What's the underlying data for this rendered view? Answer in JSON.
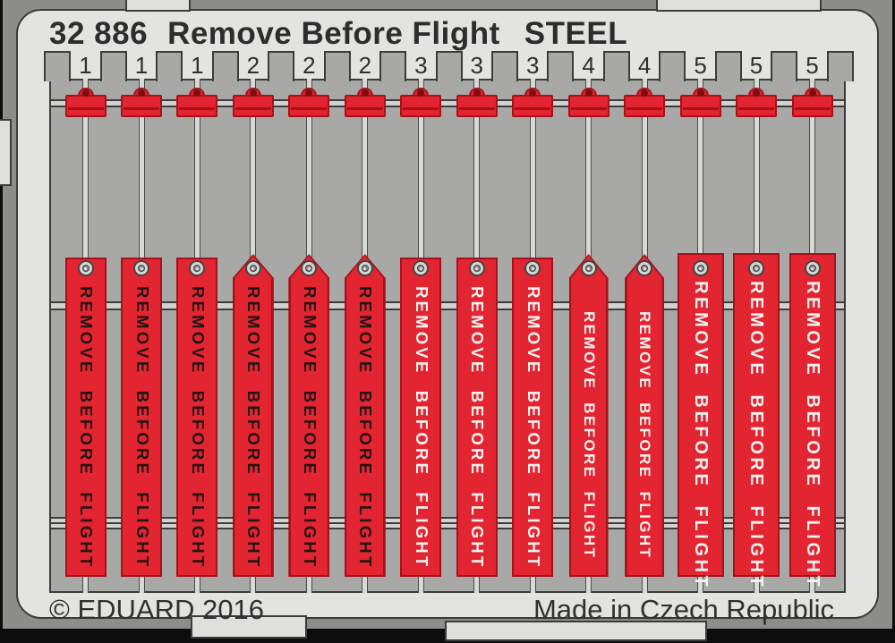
{
  "header": {
    "catalog_number": "32 886",
    "product_name": "Remove Before Flight",
    "material": "STEEL"
  },
  "footer": {
    "copyright": "© EDUARD 2016",
    "origin": "Made in Czech Republic"
  },
  "banner_text": "REMOVE BEFORE FLIGHT",
  "columns": [
    {
      "number": "1",
      "banner_text": "REMOVE BEFORE FLIGHT",
      "top": "flat",
      "text_color": "dark",
      "size": "std"
    },
    {
      "number": "1",
      "banner_text": "REMOVE BEFORE FLIGHT",
      "top": "flat",
      "text_color": "dark",
      "size": "std"
    },
    {
      "number": "1",
      "banner_text": "REMOVE BEFORE FLIGHT",
      "top": "flat",
      "text_color": "dark",
      "size": "std"
    },
    {
      "number": "2",
      "banner_text": "REMOVE BEFORE FLIGHT",
      "top": "point",
      "text_color": "dark",
      "size": "std"
    },
    {
      "number": "2",
      "banner_text": "REMOVE BEFORE FLIGHT",
      "top": "point",
      "text_color": "dark",
      "size": "std"
    },
    {
      "number": "2",
      "banner_text": "REMOVE BEFORE FLIGHT",
      "top": "point",
      "text_color": "dark",
      "size": "std"
    },
    {
      "number": "3",
      "banner_text": "REMOVE BEFORE FLIGHT",
      "top": "flat",
      "text_color": "light",
      "size": "std"
    },
    {
      "number": "3",
      "banner_text": "REMOVE BEFORE FLIGHT",
      "top": "flat",
      "text_color": "light",
      "size": "std"
    },
    {
      "number": "3",
      "banner_text": "REMOVE BEFORE FLIGHT",
      "top": "flat",
      "text_color": "light",
      "size": "std"
    },
    {
      "number": "4",
      "banner_text": "REMOVE BEFORE FLIGHT",
      "top": "point",
      "text_color": "light",
      "size": "narrow"
    },
    {
      "number": "4",
      "banner_text": "REMOVE BEFORE FLIGHT",
      "top": "point",
      "text_color": "light",
      "size": "narrow"
    },
    {
      "number": "5",
      "banner_text": "REMOVE BEFORE FLIGHT",
      "top": "flat",
      "text_color": "light",
      "size": "wide"
    },
    {
      "number": "5",
      "banner_text": "REMOVE BEFORE FLIGHT",
      "top": "flat",
      "text_color": "light",
      "size": "wide"
    },
    {
      "number": "5",
      "banner_text": "REMOVE BEFORE FLIGHT",
      "top": "flat",
      "text_color": "light",
      "size": "wide"
    }
  ],
  "colors": {
    "flag_red": "#e32531",
    "flag_red_dark": "#a8101a",
    "plate_gray": "#a8a8a6",
    "frame_gray": "#e3e3e1",
    "margin_gray": "#8d8d8b",
    "outline": "#3c3c3c",
    "banner_text_dark": "#231413",
    "banner_text_light": "#f4f2f0"
  }
}
